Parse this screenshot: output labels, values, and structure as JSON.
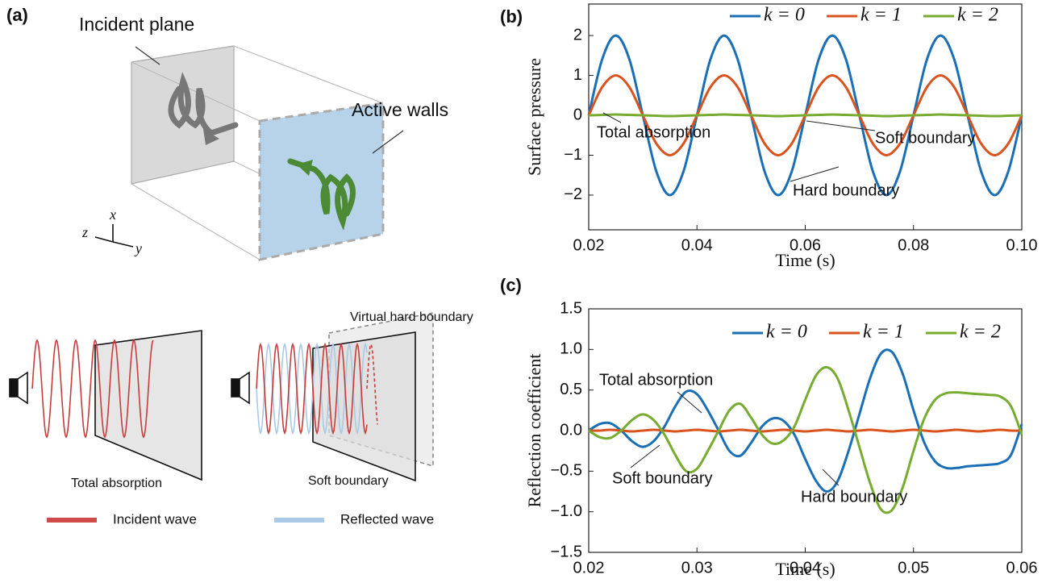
{
  "diagram": {
    "panel": "(a)",
    "incident_plane": "Incident plane",
    "active_walls": "Active walls",
    "axis_x": "x",
    "axis_y": "y",
    "axis_z": "z",
    "virtual_hard_boundary": "Virtual hard boundary",
    "total_absorption": "Total absorption",
    "soft_boundary": "Soft boundary",
    "incident_wave": "Incident wave",
    "reflected_wave": "Reflected wave"
  },
  "chart_data": [
    {
      "type": "line",
      "panel": "(b)",
      "ylabel": "Surface pressure",
      "xlabel": "Time (s)",
      "legend": "upper right",
      "grid": false,
      "x": [
        0.02,
        0.0225,
        0.025,
        0.0275,
        0.03,
        0.0325,
        0.035,
        0.0375,
        0.04,
        0.0425,
        0.045,
        0.0475,
        0.05,
        0.0525,
        0.055,
        0.0575,
        0.06,
        0.0625,
        0.065,
        0.0675,
        0.07,
        0.0725,
        0.075,
        0.0775,
        0.08,
        0.0825,
        0.085,
        0.0875,
        0.09,
        0.0925,
        0.095,
        0.0975,
        0.1
      ],
      "xlim": [
        0.02,
        0.1
      ],
      "xticks": [
        0.02,
        0.04,
        0.06,
        0.08,
        {
          "value": 0.1,
          "label": "0.10"
        }
      ],
      "ylim": [
        -2.87,
        2.79
      ],
      "yticks": [
        {
          "value": -2,
          "label": "−2"
        },
        {
          "value": -1,
          "label": "−1"
        },
        0,
        1,
        2
      ],
      "series": [
        {
          "name": "k = 0",
          "color": "#1a6fb5",
          "values": [
            0,
            1.41,
            2,
            1.41,
            0,
            -1.41,
            -2,
            -1.41,
            0,
            1.41,
            2,
            1.41,
            0,
            -1.41,
            -2,
            -1.41,
            0,
            1.41,
            2,
            1.41,
            0,
            -1.41,
            -2,
            -1.41,
            0,
            1.41,
            2,
            1.41,
            0,
            -1.41,
            -2,
            -1.41,
            0
          ]
        },
        {
          "name": "k = 1",
          "color": "#d9531e",
          "values": [
            0,
            0.71,
            1,
            0.71,
            0,
            -0.71,
            -1,
            -0.71,
            0,
            0.71,
            1,
            0.71,
            0,
            -0.71,
            -1,
            -0.71,
            0,
            0.71,
            1,
            0.71,
            0,
            -0.71,
            -1,
            -0.71,
            0,
            0.71,
            1,
            0.71,
            0,
            -0.71,
            -1,
            -0.71,
            0
          ]
        },
        {
          "name": "k = 2",
          "color": "#77ac30",
          "values": [
            0,
            0.01,
            0.02,
            0.01,
            0,
            -0.01,
            -0.02,
            -0.01,
            0,
            0.01,
            0.02,
            0.01,
            0,
            -0.01,
            -0.02,
            -0.01,
            0,
            0.01,
            0.02,
            0.01,
            0,
            -0.01,
            -0.02,
            -0.01,
            0,
            0.01,
            0.02,
            0.01,
            0,
            -0.01,
            -0.02,
            -0.01,
            0
          ]
        }
      ],
      "annotations": [
        "Total absorption",
        "Soft boundary",
        "Hard boundary"
      ]
    },
    {
      "type": "line",
      "panel": "(c)",
      "ylabel": "Reflection coefficient",
      "xlabel": "Time (s)",
      "legend": "upper right",
      "grid": false,
      "x": [
        0.02,
        0.021,
        0.022,
        0.023,
        0.024,
        0.025,
        0.026,
        0.027,
        0.028,
        0.029,
        0.03,
        0.031,
        0.032,
        0.033,
        0.034,
        0.035,
        0.036,
        0.037,
        0.038,
        0.039,
        0.04,
        0.041,
        0.042,
        0.043,
        0.044,
        0.045,
        0.046,
        0.047,
        0.048,
        0.049,
        0.05,
        0.051,
        0.052,
        0.053,
        0.054,
        0.055,
        0.056,
        0.057,
        0.058,
        0.059,
        0.06
      ],
      "xlim": [
        0.02,
        0.06
      ],
      "xticks": [
        0.02,
        0.03,
        0.04,
        0.05,
        0.06
      ],
      "ylim": [
        -1.5,
        1.5
      ],
      "yticks": [
        {
          "value": -1.5,
          "label": "−1.5"
        },
        {
          "value": -1,
          "label": "−1.0"
        },
        {
          "value": -0.5,
          "label": "−0.5"
        },
        {
          "value": 0,
          "label": "0.0"
        },
        0.5,
        {
          "value": 1,
          "label": "1.0"
        },
        1.5
      ],
      "series": [
        {
          "name": "k = 0",
          "color": "#1a6fb5",
          "values": [
            0,
            0.08,
            0.09,
            0,
            -0.13,
            -0.2,
            -0.13,
            0.05,
            0.3,
            0.48,
            0.45,
            0.25,
            0,
            -0.25,
            -0.31,
            -0.15,
            0.05,
            0.15,
            0.12,
            -0.05,
            -0.35,
            -0.62,
            -0.75,
            -0.62,
            -0.25,
            0.2,
            0.65,
            0.95,
            0.97,
            0.7,
            0.25,
            -0.15,
            -0.38,
            -0.46,
            -0.46,
            -0.44,
            -0.43,
            -0.42,
            -0.4,
            -0.3,
            0.08
          ]
        },
        {
          "name": "k = 1",
          "color": "#d9531e",
          "values": [
            0,
            0,
            0.01,
            0,
            -0.01,
            0,
            0.01,
            0,
            -0.01,
            0,
            0.01,
            0,
            -0.01,
            0,
            0.01,
            0,
            -0.01,
            0,
            0.01,
            0,
            -0.01,
            0,
            0.01,
            0,
            -0.01,
            0,
            0.01,
            0,
            -0.01,
            0,
            0.01,
            0,
            -0.01,
            0,
            0.01,
            0,
            -0.01,
            0,
            0.01,
            0,
            0
          ]
        },
        {
          "name": "k = 2",
          "color": "#77ac30",
          "values": [
            0,
            -0.08,
            -0.09,
            0,
            0.13,
            0.2,
            0.13,
            -0.05,
            -0.3,
            -0.5,
            -0.47,
            -0.25,
            0,
            0.25,
            0.33,
            0.16,
            -0.05,
            -0.16,
            -0.12,
            0.05,
            0.38,
            0.68,
            0.78,
            0.64,
            0.25,
            -0.2,
            -0.65,
            -0.97,
            -0.98,
            -0.7,
            -0.25,
            0.15,
            0.38,
            0.46,
            0.47,
            0.46,
            0.45,
            0.44,
            0.42,
            0.3,
            -0.05
          ]
        }
      ],
      "annotations": [
        "Total absorption",
        "Soft boundary",
        "Hard boundary"
      ]
    }
  ]
}
